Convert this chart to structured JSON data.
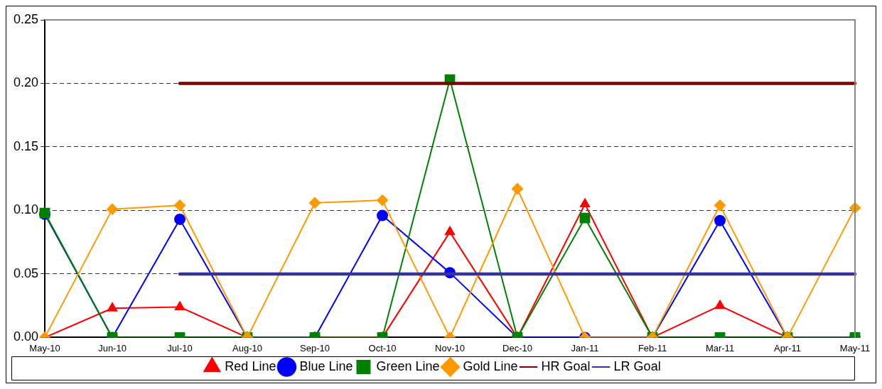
{
  "chart_data": {
    "type": "line",
    "categories": [
      "May-10",
      "Jun-10",
      "Jul-10",
      "Aug-10",
      "Sep-10",
      "Oct-10",
      "Nov-10",
      "Dec-10",
      "Jan-11",
      "Feb-11",
      "Mar-11",
      "Apr-11",
      "May-11"
    ],
    "series": [
      {
        "name": "Red Line",
        "color": "#ff0000",
        "marker": "triangle",
        "values": [
          0,
          0.023,
          0.024,
          0,
          0,
          0,
          0.083,
          0,
          0.105,
          0,
          0.025,
          0,
          0
        ]
      },
      {
        "name": "Blue Line",
        "color": "#0000ff",
        "marker": "circle",
        "values": [
          0.097,
          0,
          0.093,
          0,
          0,
          0.096,
          0.051,
          0,
          0,
          0,
          0.092,
          0,
          0
        ]
      },
      {
        "name": "Green Line",
        "color": "#008000",
        "marker": "square",
        "values": [
          0.098,
          0,
          0,
          0,
          0,
          0,
          0.203,
          0,
          0.094,
          0,
          0,
          0,
          0
        ]
      },
      {
        "name": "Gold Line",
        "color": "#ff9900",
        "marker": "diamond",
        "values": [
          0,
          0.101,
          0.104,
          0,
          0.106,
          0.108,
          0,
          0.117,
          0,
          0,
          0.104,
          0,
          0.102
        ]
      },
      {
        "name": "HR Goal",
        "color": "#800000",
        "marker": "none",
        "values": [
          null,
          null,
          0.2,
          0.2,
          0.2,
          0.2,
          0.2,
          0.2,
          0.2,
          0.2,
          0.2,
          0.2,
          0.2
        ]
      },
      {
        "name": "LR Goal",
        "color": "#333399",
        "marker": "none",
        "values": [
          null,
          null,
          0.05,
          0.05,
          0.05,
          0.05,
          0.05,
          0.05,
          0.05,
          0.05,
          0.05,
          0.05,
          0.05
        ]
      }
    ],
    "ylim": [
      0,
      0.25
    ],
    "yticks": [
      {
        "value": 0,
        "label": "0.00"
      },
      {
        "value": 0.05,
        "label": "0.05"
      },
      {
        "value": 0.1,
        "label": "0.10"
      },
      {
        "value": 0.15,
        "label": "0.15"
      },
      {
        "value": 0.2,
        "label": "0.20"
      },
      {
        "value": 0.25,
        "label": "0.25"
      }
    ],
    "grid": "y",
    "legend": "bottom",
    "line_style": "solid"
  }
}
